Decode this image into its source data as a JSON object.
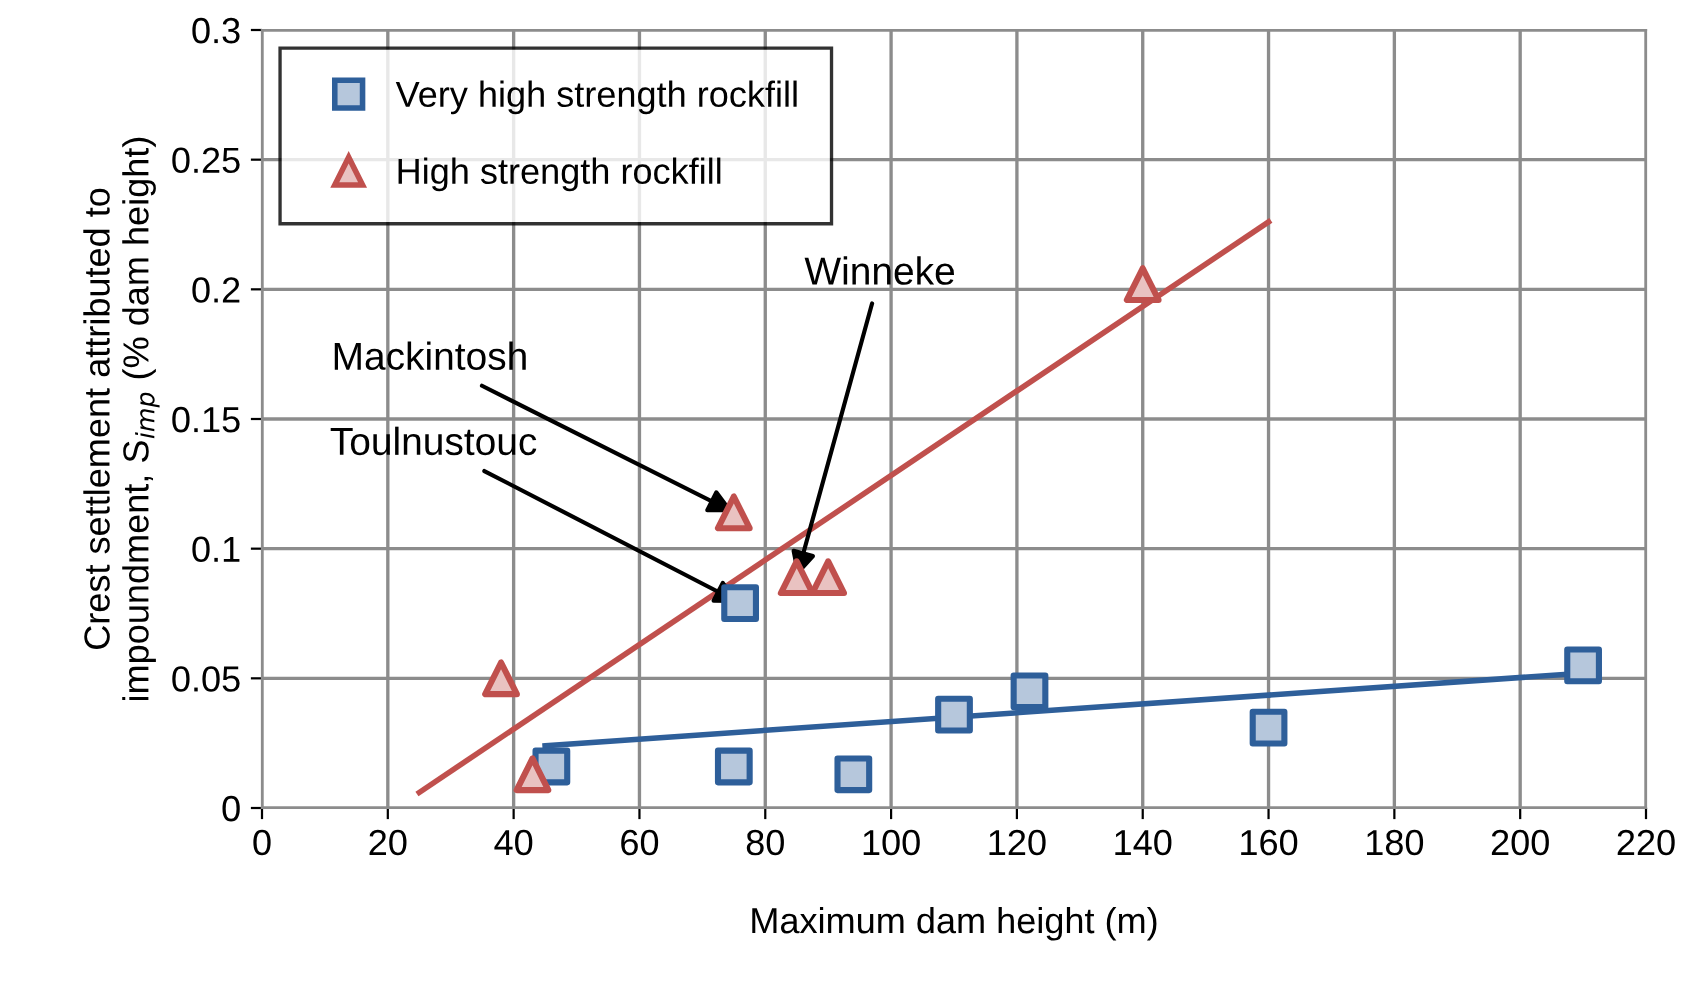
{
  "chart_data": {
    "type": "scatter",
    "xlabel": "Maximum dam height (m)",
    "ylabel": "Crest settlement attributed to\nimpoundment, S$_{imp}$ (% dam height)",
    "xlim": [
      0,
      220
    ],
    "ylim": [
      0,
      0.3
    ],
    "xticks": [
      0,
      20,
      40,
      60,
      80,
      100,
      120,
      140,
      160,
      180,
      200,
      220
    ],
    "yticks": [
      0,
      0.05,
      0.1,
      0.15,
      0.2,
      0.25,
      0.3
    ],
    "grid": true,
    "legend": "top left",
    "series": [
      {
        "name": "Very high strength rockfill",
        "marker": "square",
        "color": "#2e5f9a",
        "x": [
          46,
          75,
          94,
          110,
          122,
          76,
          160,
          210
        ],
        "values": [
          0.016,
          0.016,
          0.013,
          0.036,
          0.045,
          0.079,
          0.031,
          0.055
        ]
      },
      {
        "name": "High strength rockfill",
        "marker": "triangle",
        "color": "#c0504d",
        "x": [
          38,
          43,
          75,
          85,
          90,
          140
        ],
        "values": [
          0.05,
          0.013,
          0.114,
          0.089,
          0.089,
          0.202
        ]
      },
      {
        "type": "line",
        "color": "#c0504d",
        "x": [
          25,
          160
        ],
        "values": [
          0.006,
          0.226
        ]
      },
      {
        "type": "line",
        "color": "#2e5f9a",
        "x": [
          45,
          210
        ],
        "values": [
          0.024,
          0.052
        ]
      }
    ],
    "annotations": [
      {
        "text": "Mackintosh",
        "x": 75,
        "y": 0.114
      },
      {
        "text": "Toulnustouc",
        "x": 76,
        "y": 0.079
      },
      {
        "text": "Winneke",
        "x": 85,
        "y": 0.089
      }
    ]
  }
}
